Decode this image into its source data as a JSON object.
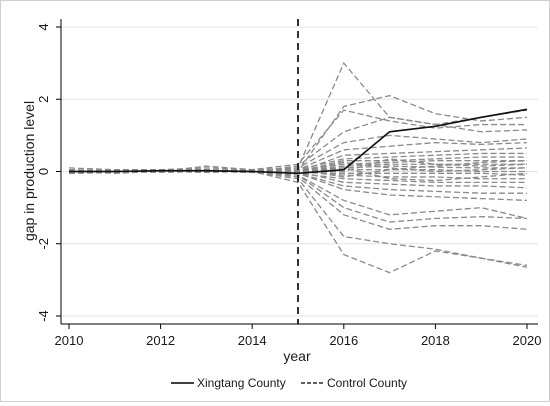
{
  "chart_data": {
    "type": "line",
    "title": "",
    "xlabel": "year",
    "ylabel": "gap in production level",
    "xlim": [
      2010,
      2020
    ],
    "ylim": [
      -4,
      4
    ],
    "x_ticks": [
      "2010",
      "2012",
      "2014",
      "2016",
      "2018",
      "2020"
    ],
    "y_ticks": [
      "-4",
      "-2",
      "0",
      "2",
      "4"
    ],
    "grid": "horizontal",
    "reference_line_x": 2015,
    "legend": {
      "placement": "bottom",
      "treated_label": "Xingtang County",
      "control_label": "Control County"
    },
    "x": [
      2010,
      2011,
      2012,
      2013,
      2014,
      2015,
      2016,
      2017,
      2018,
      2019,
      2020
    ],
    "treated": {
      "name": "Xingtang County",
      "values": [
        0,
        0,
        0.02,
        0.02,
        0,
        -0.05,
        0.05,
        1.1,
        1.25,
        1.5,
        1.72
      ]
    },
    "control": {
      "name": "Control County",
      "series": [
        [
          0.05,
          0.02,
          0.05,
          0.1,
          0.05,
          0.1,
          3.0,
          1.5,
          1.3,
          1.5,
          1.7
        ],
        [
          -0.05,
          -0.02,
          0.02,
          0.05,
          0.02,
          0.0,
          1.8,
          2.1,
          1.6,
          1.4,
          1.5
        ],
        [
          0.03,
          0.0,
          0.0,
          0.15,
          0.05,
          0.2,
          1.7,
          1.4,
          1.2,
          1.3,
          1.3
        ],
        [
          0.1,
          0.05,
          0.05,
          0.05,
          0.0,
          0.15,
          1.1,
          1.5,
          1.3,
          1.1,
          1.15
        ],
        [
          -0.02,
          0.03,
          0.02,
          0.0,
          -0.02,
          0.1,
          0.8,
          1.0,
          0.9,
          0.8,
          0.9
        ],
        [
          0.0,
          0.0,
          0.05,
          0.02,
          0.0,
          0.05,
          0.6,
          0.7,
          0.8,
          0.75,
          0.8
        ],
        [
          0.02,
          -0.02,
          0.0,
          0.03,
          0.02,
          0.0,
          0.45,
          0.5,
          0.55,
          0.6,
          0.65
        ],
        [
          -0.03,
          0.0,
          0.02,
          0.0,
          0.0,
          0.05,
          0.35,
          0.4,
          0.45,
          0.5,
          0.5
        ],
        [
          0.0,
          0.02,
          0.0,
          0.02,
          0.0,
          0.0,
          0.3,
          0.3,
          0.35,
          0.4,
          0.4
        ],
        [
          0.02,
          0.0,
          0.0,
          -0.02,
          0.0,
          0.02,
          0.2,
          0.25,
          0.3,
          0.3,
          0.3
        ],
        [
          0.0,
          0.0,
          0.02,
          0.0,
          -0.02,
          0.0,
          0.15,
          0.2,
          0.2,
          0.2,
          0.2
        ],
        [
          -0.02,
          0.0,
          0.0,
          0.02,
          0.0,
          0.0,
          0.1,
          0.15,
          0.12,
          0.1,
          0.1
        ],
        [
          0.0,
          0.02,
          0.0,
          0.0,
          0.0,
          0.0,
          0.05,
          0.05,
          0.05,
          0.0,
          0.0
        ],
        [
          0.02,
          0.0,
          -0.02,
          0.0,
          0.0,
          -0.02,
          -0.05,
          -0.05,
          -0.05,
          -0.05,
          -0.1
        ],
        [
          0.0,
          0.0,
          0.0,
          0.02,
          0.02,
          0.0,
          -0.1,
          -0.15,
          -0.15,
          -0.2,
          -0.2
        ],
        [
          -0.02,
          0.0,
          0.02,
          0.0,
          0.0,
          -0.05,
          -0.2,
          -0.25,
          -0.3,
          -0.3,
          -0.3
        ],
        [
          0.0,
          -0.02,
          0.0,
          0.0,
          0.0,
          0.0,
          -0.3,
          -0.35,
          -0.4,
          -0.4,
          -0.45
        ],
        [
          0.02,
          0.0,
          0.0,
          -0.02,
          0.0,
          -0.05,
          -0.4,
          -0.5,
          -0.55,
          -0.6,
          -0.6
        ],
        [
          0.0,
          0.0,
          0.02,
          0.0,
          -0.02,
          -0.05,
          -0.5,
          -0.65,
          -0.7,
          -0.75,
          -0.8
        ],
        [
          -0.05,
          -0.03,
          0.0,
          0.05,
          0.0,
          -0.1,
          -0.8,
          -1.2,
          -1.1,
          -1.0,
          -1.3
        ],
        [
          0.05,
          0.0,
          0.0,
          0.0,
          0.0,
          -0.1,
          -1.0,
          -1.4,
          -1.3,
          -1.25,
          -1.3
        ],
        [
          0.0,
          -0.05,
          0.0,
          0.02,
          0.0,
          -0.15,
          -1.2,
          -1.6,
          -1.5,
          -1.5,
          -1.6
        ],
        [
          -0.03,
          0.0,
          0.02,
          0.0,
          -0.02,
          -0.2,
          -1.8,
          -2.0,
          -2.15,
          -2.4,
          -2.6
        ],
        [
          0.0,
          0.0,
          -0.02,
          0.0,
          0.0,
          -0.3,
          -2.3,
          -2.8,
          -2.2,
          -2.4,
          -2.65
        ],
        [
          0.02,
          0.0,
          0.0,
          0.0,
          0.02,
          0.0,
          0.25,
          0.1,
          0.0,
          0.05,
          0.1
        ],
        [
          0.0,
          0.02,
          0.0,
          0.0,
          0.0,
          0.05,
          -0.15,
          0.05,
          0.15,
          0.25,
          0.3
        ],
        [
          0.0,
          0.0,
          0.0,
          -0.02,
          0.0,
          0.02,
          0.1,
          -0.2,
          -0.25,
          -0.15,
          -0.05
        ],
        [
          -0.02,
          0.0,
          0.02,
          0.0,
          0.0,
          0.0,
          0.0,
          0.35,
          0.2,
          0.15,
          0.2
        ]
      ]
    }
  }
}
